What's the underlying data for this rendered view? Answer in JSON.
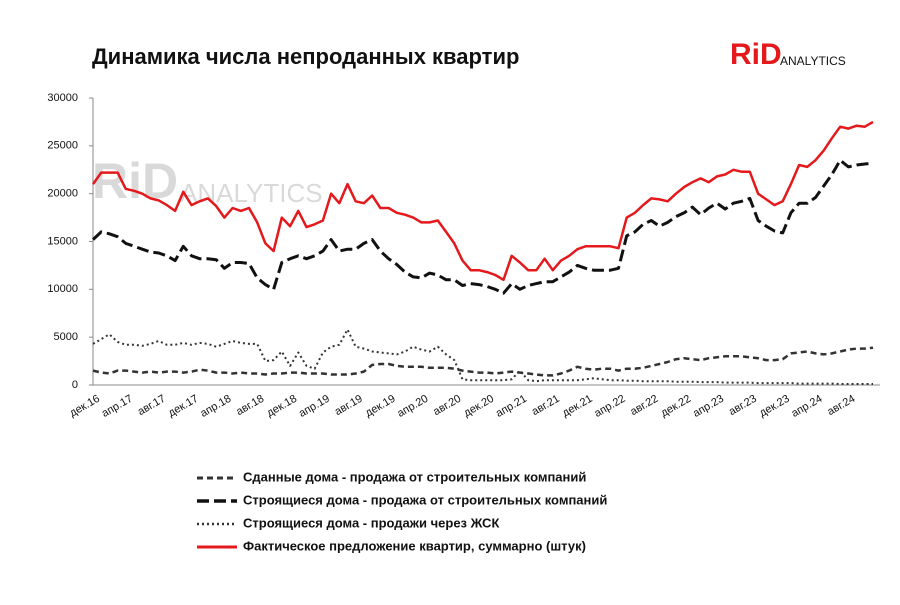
{
  "chart_data": {
    "type": "line",
    "title": "Динамика числа непроданных квартир",
    "logo": {
      "brand": "RiD",
      "sub": "ANALYTICS"
    },
    "categories": [
      "дек.16",
      null,
      null,
      null,
      "апр.17",
      null,
      null,
      null,
      "авг.17",
      null,
      null,
      null,
      "дек.17",
      null,
      null,
      null,
      "апр.18",
      null,
      null,
      null,
      "авг.18",
      null,
      null,
      null,
      "дек.18",
      null,
      null,
      null,
      "апр.19",
      null,
      null,
      null,
      "авг.19",
      null,
      null,
      null,
      "дек.19",
      null,
      null,
      null,
      "апр.20",
      null,
      null,
      null,
      "авг.20",
      null,
      null,
      null,
      "дек.20",
      null,
      null,
      null,
      "апр.21",
      null,
      null,
      null,
      "авг.21",
      null,
      null,
      null,
      "дек.21",
      null,
      null,
      null,
      "апр.22",
      null,
      null,
      null,
      "авг.22",
      null,
      null,
      null,
      "дек.22",
      null,
      null,
      null,
      "апр.23",
      null,
      null,
      null,
      "авг.23",
      null,
      null,
      null,
      "дек.23",
      null,
      null,
      null,
      "апр.24",
      null,
      null,
      null,
      "авг.24",
      null,
      null,
      null
    ],
    "ylim": [
      0,
      30000
    ],
    "yticks": [
      0,
      5000,
      10000,
      15000,
      20000,
      25000,
      30000
    ],
    "series": [
      {
        "name": "Сданные дома - продажа от строительных компаний",
        "color": "#333333",
        "dash": "6,4",
        "width": 2.5,
        "values": [
          1500,
          1300,
          1200,
          1500,
          1500,
          1400,
          1300,
          1400,
          1300,
          1400,
          1400,
          1300,
          1400,
          1600,
          1500,
          1300,
          1300,
          1200,
          1300,
          1200,
          1200,
          1100,
          1200,
          1200,
          1300,
          1300,
          1200,
          1200,
          1200,
          1100,
          1100,
          1100,
          1200,
          1400,
          2100,
          2200,
          2200,
          2000,
          1900,
          1900,
          1900,
          1800,
          1800,
          1800,
          1700,
          1500,
          1400,
          1300,
          1300,
          1200,
          1300,
          1400,
          1300,
          1200,
          1100,
          1000,
          1000,
          1200,
          1500,
          1900,
          1700,
          1600,
          1700,
          1700,
          1500,
          1700,
          1700,
          1800,
          2000,
          2200,
          2400,
          2700,
          2800,
          2700,
          2600,
          2800,
          2900,
          3000,
          3000,
          3000,
          2900,
          2800,
          2600,
          2600,
          2700,
          3300,
          3400,
          3500,
          3300,
          3200,
          3300,
          3500,
          3700,
          3800,
          3800,
          3900
        ]
      },
      {
        "name": "Строящиеся дома - продажа от строительных компаний",
        "color": "#111111",
        "dash": "12,5",
        "width": 3,
        "values": [
          15200,
          16000,
          15800,
          15500,
          14800,
          14500,
          14200,
          13900,
          13800,
          13500,
          13000,
          14500,
          13500,
          13200,
          13200,
          13100,
          12200,
          12800,
          12800,
          12700,
          11200,
          10500,
          10000,
          12800,
          13200,
          13500,
          13200,
          13500,
          14000,
          15200,
          14000,
          14200,
          14200,
          14800,
          15200,
          14000,
          13200,
          12600,
          11800,
          11300,
          11200,
          11700,
          11500,
          11000,
          11000,
          10400,
          10600,
          10500,
          10300,
          10000,
          9600,
          10600,
          10000,
          10400,
          10600,
          10800,
          10800,
          11300,
          11800,
          12500,
          12200,
          12000,
          12000,
          12000,
          12200,
          15600,
          16000,
          16800,
          17200,
          16600,
          17000,
          17600,
          18000,
          18600,
          17800,
          18500,
          19000,
          18400,
          19000,
          19200,
          19500,
          17200,
          16600,
          16100,
          15900,
          18000,
          19000,
          19000,
          19600,
          20800,
          22000,
          23500,
          22800,
          23000,
          23100,
          23200
        ]
      },
      {
        "name": "Строящиеся дома - продажи через ЖСК",
        "color": "#333333",
        "dash": "2,3",
        "width": 2,
        "values": [
          4300,
          4800,
          5300,
          4500,
          4200,
          4200,
          4100,
          4300,
          4600,
          4200,
          4200,
          4400,
          4200,
          4400,
          4300,
          4000,
          4300,
          4600,
          4400,
          4300,
          4300,
          2500,
          2600,
          3500,
          2000,
          3400,
          2000,
          1700,
          3400,
          4000,
          4200,
          5800,
          4000,
          3800,
          3500,
          3400,
          3300,
          3200,
          3500,
          4000,
          3700,
          3500,
          4000,
          3200,
          2600,
          600,
          500,
          500,
          500,
          500,
          500,
          600,
          1500,
          500,
          400,
          500,
          500,
          500,
          500,
          500,
          600,
          700,
          600,
          500,
          500,
          450,
          450,
          400,
          400,
          400,
          400,
          350,
          350,
          350,
          300,
          300,
          300,
          250,
          250,
          250,
          250,
          200,
          200,
          200,
          200,
          200,
          150,
          150,
          150,
          150,
          150,
          100,
          100,
          100,
          100,
          100
        ]
      },
      {
        "name": "Фактическое предложение квартир, суммарно (штук)",
        "color": "#e3191c",
        "dash": "",
        "width": 2.5,
        "values": [
          21000,
          22200,
          22200,
          22200,
          20500,
          20300,
          20000,
          19500,
          19300,
          18800,
          18200,
          20200,
          18800,
          19200,
          19500,
          18700,
          17500,
          18500,
          18200,
          18500,
          17000,
          14800,
          14000,
          17500,
          16600,
          18200,
          16500,
          16800,
          17200,
          20000,
          19000,
          21000,
          19200,
          19000,
          19800,
          18500,
          18500,
          18000,
          17800,
          17500,
          17000,
          17000,
          17200,
          16000,
          14800,
          13000,
          12000,
          12000,
          11800,
          11500,
          11000,
          13500,
          12800,
          12000,
          12000,
          13200,
          12000,
          13000,
          13500,
          14200,
          14500,
          14500,
          14500,
          14500,
          14300,
          17500,
          18000,
          18800,
          19500,
          19400,
          19200,
          20000,
          20700,
          21200,
          21600,
          21200,
          21800,
          22000,
          22500,
          22300,
          22300,
          20000,
          19400,
          18800,
          19200,
          21000,
          23000,
          22800,
          23500,
          24500,
          25800,
          27000,
          26800,
          27100,
          27000,
          27500
        ]
      }
    ]
  }
}
